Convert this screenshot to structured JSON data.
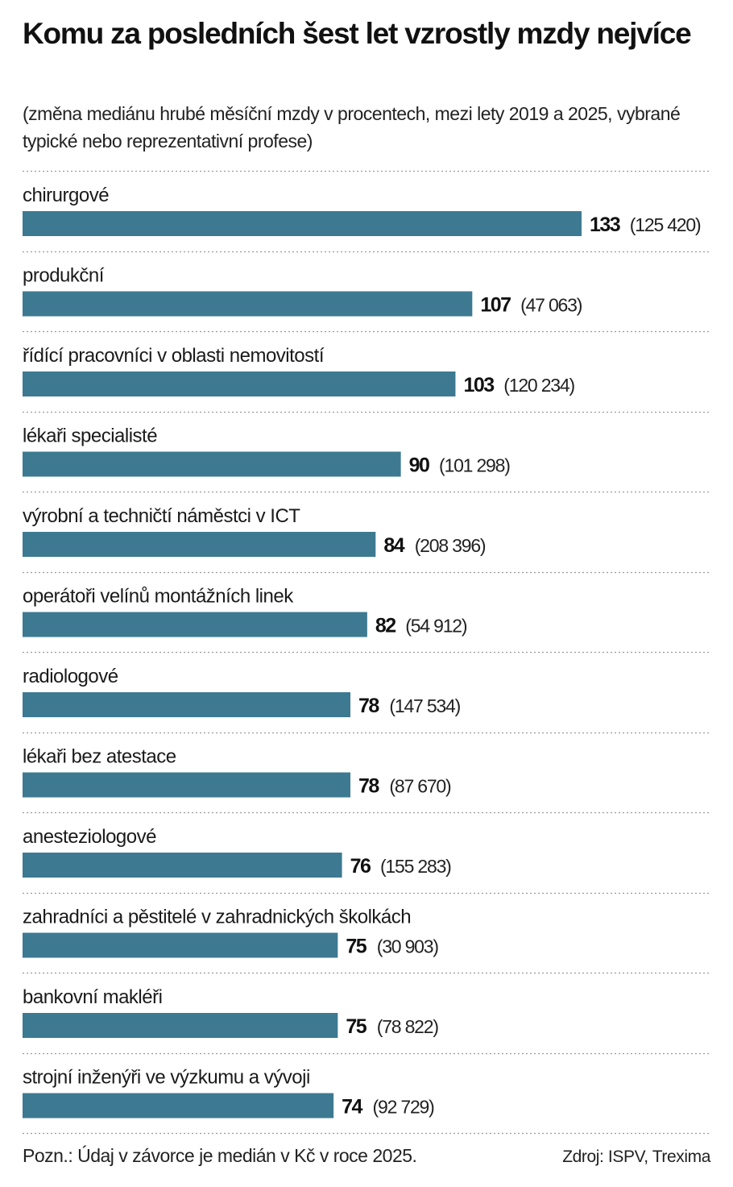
{
  "header": {
    "title": "Komu za posledních šest let vzrostly mzdy nejvíce",
    "subtitle": "(změna mediánu hrubé měsíční mzdy v procentech, mezi lety 2019 a 2025, vybrané typické nebo reprezentativní profese)"
  },
  "footer": {
    "note": "Pozn.: Údaj v závorce je medián v Kč v roce 2025.",
    "source": "Zdroj: ISPV, Trexima"
  },
  "colors": {
    "bar": "#3d7a91",
    "separator": "#9a9a9a",
    "text": "#1a1a1a"
  },
  "chart_data": {
    "type": "bar",
    "orientation": "horizontal",
    "categories": [
      "chirurgové",
      "produkční",
      "řídící pracovníci v oblasti nemovitostí",
      "lékaři specialisté",
      "výrobní a techničtí náměstci v ICT",
      "operátoři velínů montážních linek",
      "radiologové",
      "lékaři bez atestace",
      "anesteziologové",
      "zahradníci a pěstitelé v zahradnických školkách",
      "bankovní makléři",
      "strojní inženýři ve výzkumu a vývoji"
    ],
    "values": [
      133,
      107,
      103,
      90,
      84,
      82,
      78,
      78,
      76,
      75,
      75,
      74
    ],
    "median_labels": [
      "(125 420)",
      "(47 063)",
      "(120 234)",
      "(101 298)",
      "(208 396)",
      "(54 912)",
      "(147 534)",
      "(87 670)",
      "(155 283)",
      "(30 903)",
      "(78 822)",
      "(92 729)"
    ],
    "xlim": [
      0,
      133
    ],
    "grid": false,
    "legend": "none"
  }
}
